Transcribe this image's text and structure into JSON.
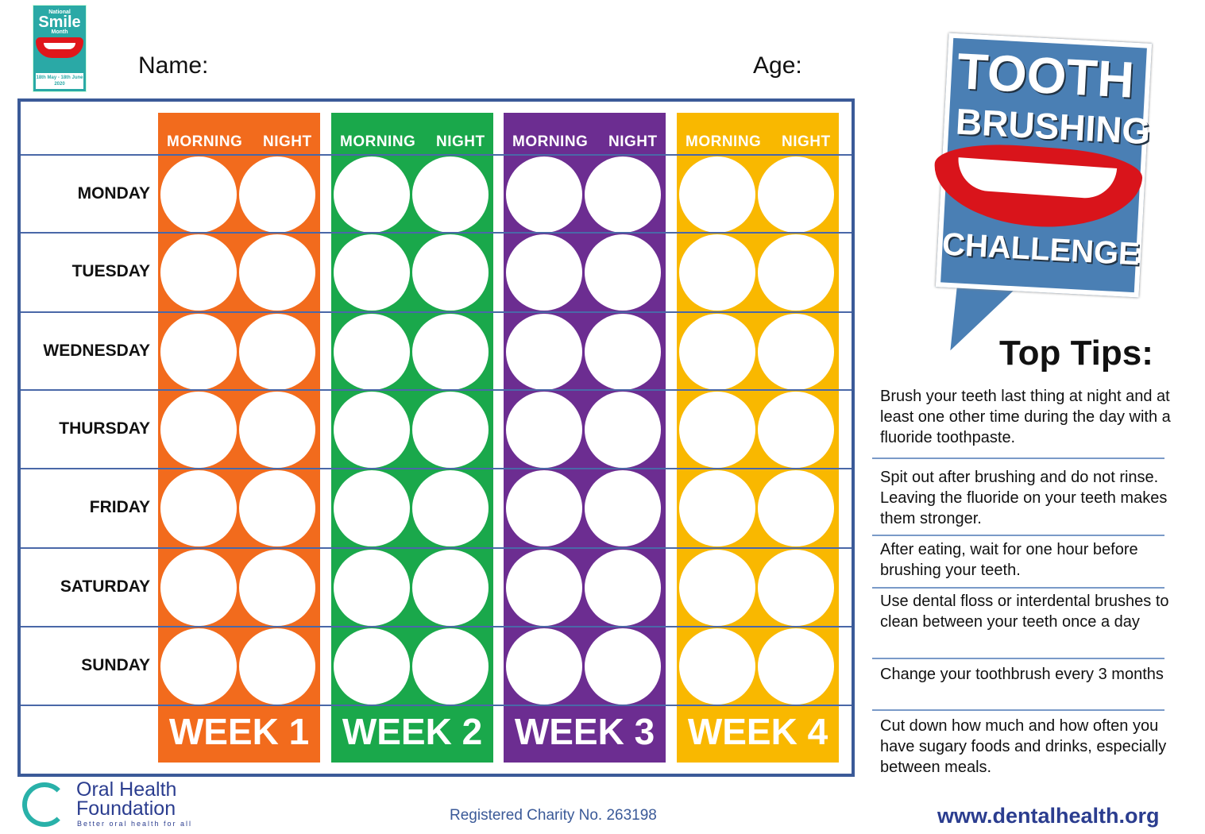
{
  "logo_top": {
    "line1": "National",
    "line2": "Smile",
    "line3": "Month",
    "dates": "18th May - 18th June 2020"
  },
  "form": {
    "name_label": "Name:",
    "age_label": "Age:"
  },
  "chart": {
    "slot_labels": [
      "MORNING",
      "NIGHT"
    ],
    "days": [
      "MONDAY",
      "TUESDAY",
      "WEDNESDAY",
      "THURSDAY",
      "FRIDAY",
      "SATURDAY",
      "SUNDAY"
    ],
    "weeks": [
      {
        "label": "WEEK 1",
        "color": "#f26b1d"
      },
      {
        "label": "WEEK 2",
        "color": "#1aa84b"
      },
      {
        "label": "WEEK 3",
        "color": "#6c2d91"
      },
      {
        "label": "WEEK 4",
        "color": "#f9b800"
      }
    ]
  },
  "sign": {
    "line1": "TOOTH",
    "line2": "BRUSHING",
    "line3": "CHALLENGE"
  },
  "tips": {
    "heading": "Top Tips:",
    "items": [
      "Brush your teeth last thing at night and at least one other time during the day with a fluoride toothpaste.",
      "Spit out after brushing and do not rinse. Leaving the fluoride on your teeth makes them stronger.",
      "After eating, wait for one hour before brushing your teeth.",
      "Use dental floss or interdental brushes to clean between your teeth once a day",
      "Change your toothbrush every 3 months",
      "Cut down how much and how often you have sugary foods and drinks, especially between meals."
    ]
  },
  "footer": {
    "org_line1": "Oral Health",
    "org_line2": "Foundation",
    "org_tagline": "Better oral health for all",
    "charity": "Registered Charity No. 263198",
    "website": "www.dentalhealth.org"
  }
}
